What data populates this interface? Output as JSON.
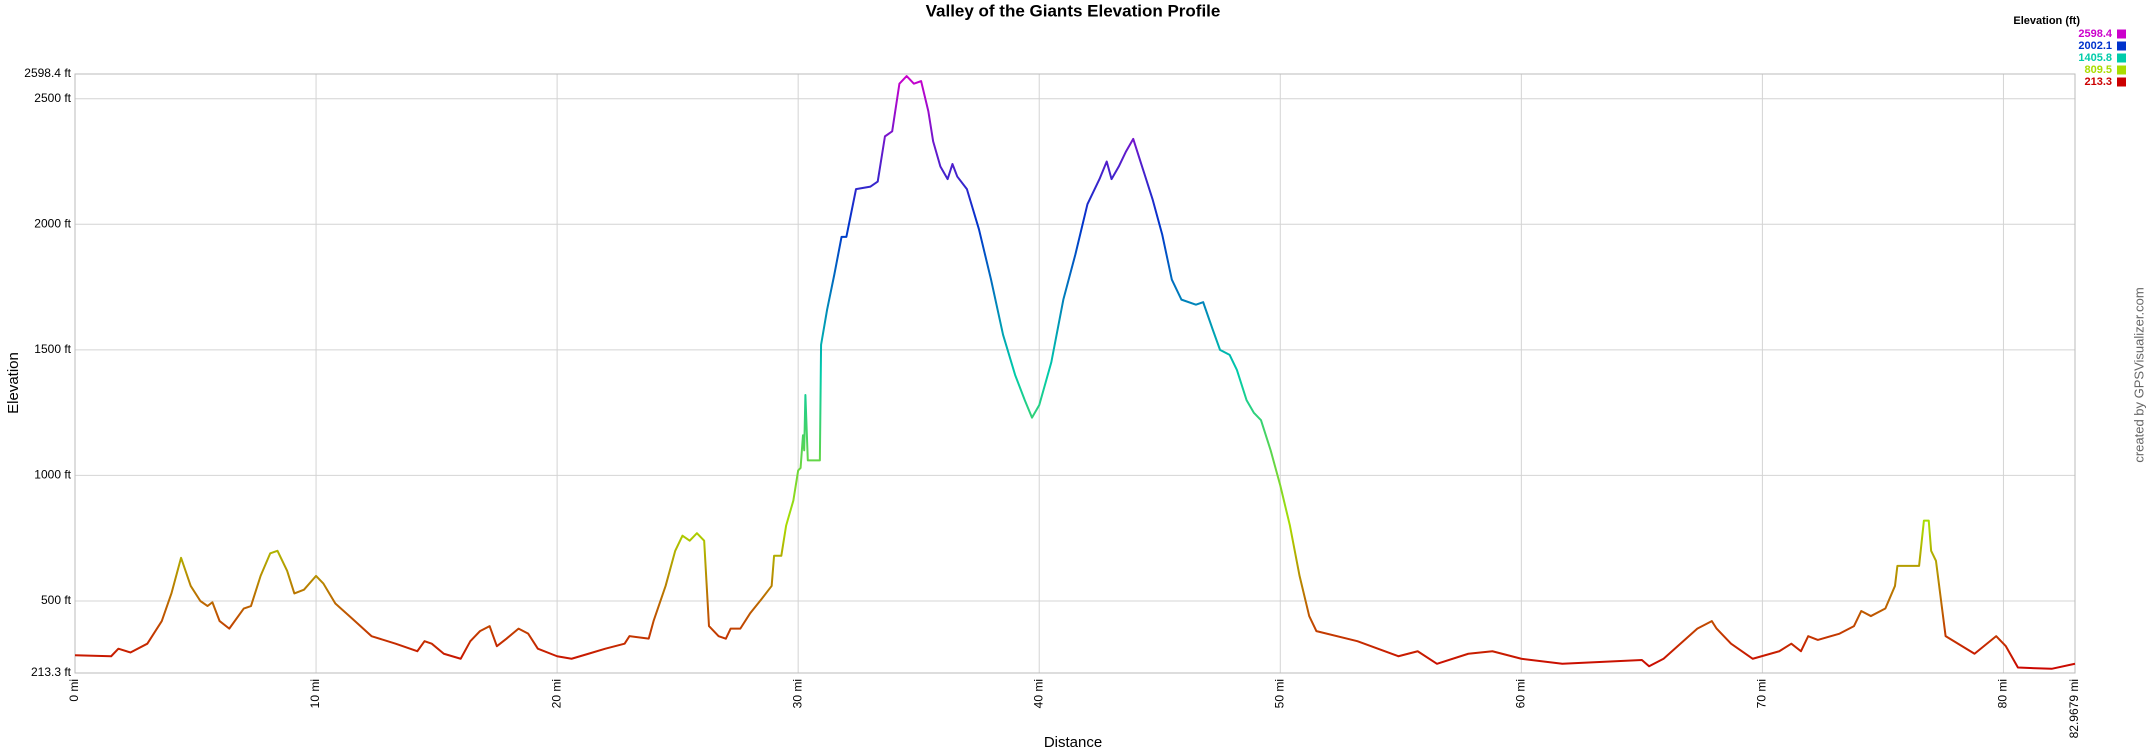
{
  "chart_data": {
    "type": "line",
    "title": "Valley of the Giants Elevation Profile",
    "x_label": "Distance",
    "y_label": "Elevation",
    "credit": "created by GPSVisualizer.com",
    "legend_title": "Elevation (ft)",
    "color_scale": [
      {
        "value": 2598.4,
        "color": "#cc00cc"
      },
      {
        "value": 2002.1,
        "color": "#0033cc"
      },
      {
        "value": 1405.8,
        "color": "#00ccaa"
      },
      {
        "value": 809.5,
        "color": "#aadd00"
      },
      {
        "value": 213.3,
        "color": "#cc0000"
      }
    ],
    "grid": true,
    "xlim": [
      0,
      82.9679
    ],
    "ylim": [
      213.3,
      2598.4
    ],
    "xticks": [
      {
        "value": 0,
        "label": "0 mi"
      },
      {
        "value": 10,
        "label": "10 mi"
      },
      {
        "value": 20,
        "label": "20 mi"
      },
      {
        "value": 30,
        "label": "30 mi"
      },
      {
        "value": 40,
        "label": "40 mi"
      },
      {
        "value": 50,
        "label": "50 mi"
      },
      {
        "value": 60,
        "label": "60 mi"
      },
      {
        "value": 70,
        "label": "70 mi"
      },
      {
        "value": 80,
        "label": "80 mi"
      },
      {
        "value": 82.9679,
        "label": "82.9679 mi"
      }
    ],
    "yticks": [
      {
        "value": 213.3,
        "label": "213.3 ft"
      },
      {
        "value": 500,
        "label": "500 ft"
      },
      {
        "value": 1000,
        "label": "1000 ft"
      },
      {
        "value": 1500,
        "label": "1500 ft"
      },
      {
        "value": 2000,
        "label": "2000 ft"
      },
      {
        "value": 2500,
        "label": "2500 ft"
      },
      {
        "value": 2598.4,
        "label": "2598.4 ft"
      }
    ],
    "x": [
      0,
      1.5,
      1.8,
      2.3,
      3,
      3.6,
      4.0,
      4.4,
      4.8,
      5.2,
      5.5,
      5.7,
      6.0,
      6.4,
      7.0,
      7.3,
      7.7,
      8.1,
      8.4,
      8.8,
      9.1,
      9.5,
      10.0,
      10.3,
      10.8,
      11.5,
      12.3,
      13.3,
      14.2,
      14.5,
      14.8,
      15.3,
      16.0,
      16.4,
      16.8,
      17.0,
      17.2,
      17.5,
      17.9,
      18.4,
      18.8,
      19.2,
      20.0,
      20.6,
      21.3,
      22.0,
      22.8,
      23.0,
      23.8,
      24.0,
      24.5,
      24.9,
      25.2,
      25.5,
      25.8,
      26.1,
      26.3,
      26.7,
      27.0,
      27.2,
      27.6,
      28.0,
      28.5,
      28.9,
      29.0,
      29.3,
      29.5,
      29.8,
      30.0,
      30.1,
      30.2,
      30.25,
      30.3,
      30.4,
      30.9,
      30.95,
      31.2,
      31.5,
      31.8,
      32.0,
      32.4,
      33.0,
      33.3,
      33.6,
      33.9,
      34.2,
      34.5,
      34.8,
      35.1,
      35.4,
      35.6,
      35.9,
      36.2,
      36.4,
      36.6,
      37.0,
      37.5,
      38.0,
      38.5,
      39.0,
      39.4,
      39.7,
      40.0,
      40.5,
      41.0,
      41.5,
      42.0,
      42.5,
      42.8,
      43.0,
      43.3,
      43.6,
      43.9,
      44.3,
      44.7,
      45.1,
      45.5,
      45.9,
      46.5,
      46.8,
      47.2,
      47.5,
      47.9,
      48.2,
      48.6,
      48.9,
      49.2,
      49.6,
      50.0,
      50.4,
      50.8,
      51.2,
      51.5,
      53.2,
      54.9,
      55.7,
      56.5,
      57.8,
      58.8,
      60.0,
      61.7,
      65.0,
      65.3,
      65.9,
      67.3,
      67.9,
      68.1,
      68.7,
      69.6,
      70.7,
      71.2,
      71.6,
      71.9,
      72.3,
      73.2,
      73.8,
      74.1,
      74.5,
      75.1,
      75.5,
      75.6,
      76.5,
      76.7,
      76.9,
      77.0,
      77.2,
      77.6,
      78.8,
      79.7,
      80.1,
      80.6,
      82.0,
      82.9679
    ],
    "values": [
      284,
      280,
      310,
      295,
      330,
      420,
      530,
      672,
      560,
      500,
      480,
      495,
      420,
      390,
      470,
      480,
      600,
      690,
      700,
      620,
      530,
      545,
      600,
      570,
      490,
      430,
      360,
      330,
      300,
      340,
      330,
      290,
      270,
      340,
      380,
      390,
      400,
      320,
      350,
      390,
      370,
      310,
      280,
      270,
      290,
      310,
      330,
      360,
      350,
      420,
      560,
      700,
      760,
      740,
      770,
      740,
      400,
      360,
      350,
      390,
      390,
      450,
      510,
      560,
      680,
      680,
      800,
      900,
      1020,
      1030,
      1160,
      1100,
      1320,
      1060,
      1060,
      1520,
      1660,
      1800,
      1950,
      1950,
      2140,
      2150,
      2170,
      2350,
      2370,
      2560,
      2590,
      2560,
      2570,
      2450,
      2330,
      2230,
      2180,
      2240,
      2190,
      2140,
      1980,
      1780,
      1560,
      1400,
      1300,
      1230,
      1280,
      1450,
      1700,
      1880,
      2080,
      2180,
      2250,
      2180,
      2230,
      2290,
      2340,
      2220,
      2100,
      1960,
      1780,
      1700,
      1680,
      1690,
      1580,
      1500,
      1480,
      1420,
      1300,
      1250,
      1220,
      1100,
      960,
      800,
      600,
      440,
      380,
      340,
      280,
      300,
      250,
      290,
      300,
      270,
      250,
      265,
      240,
      270,
      390,
      420,
      390,
      330,
      270,
      300,
      330,
      300,
      360,
      345,
      370,
      400,
      460,
      440,
      470,
      560,
      640,
      640,
      820,
      820,
      700,
      660,
      360,
      290,
      360,
      320,
      235,
      230,
      250
    ]
  }
}
